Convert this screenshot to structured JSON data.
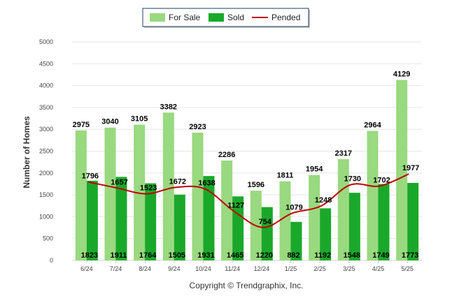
{
  "chart_data": {
    "type": "bar",
    "categories": [
      "6/24",
      "7/24",
      "8/24",
      "9/24",
      "10/24",
      "11/24",
      "12/24",
      "1/25",
      "2/25",
      "3/25",
      "4/25",
      "5/25"
    ],
    "series": [
      {
        "name": "For Sale",
        "type": "bar",
        "color": "#99d97f",
        "values": [
          2975,
          3040,
          3105,
          3382,
          2923,
          2286,
          1596,
          1811,
          1954,
          2317,
          2964,
          4129
        ]
      },
      {
        "name": "Sold",
        "type": "bar",
        "color": "#1aa82a",
        "values": [
          1823,
          1911,
          1764,
          1505,
          1931,
          1465,
          1220,
          882,
          1192,
          1548,
          1749,
          1773
        ]
      },
      {
        "name": "Pended",
        "type": "line",
        "color": "#c00000",
        "values": [
          1796,
          1657,
          1523,
          1672,
          1638,
          1127,
          754,
          1079,
          1248,
          1730,
          1702,
          1977
        ]
      }
    ],
    "ylabel": "Number of Homes",
    "xlabel": "",
    "ylim": [
      0,
      5000
    ],
    "yticks": [
      0,
      500,
      1000,
      1500,
      2000,
      2500,
      3000,
      3500,
      4000,
      4500,
      5000
    ],
    "grid": true,
    "legend_position": "top-center"
  },
  "copyright": "Copyright © Trendgraphix, Inc."
}
